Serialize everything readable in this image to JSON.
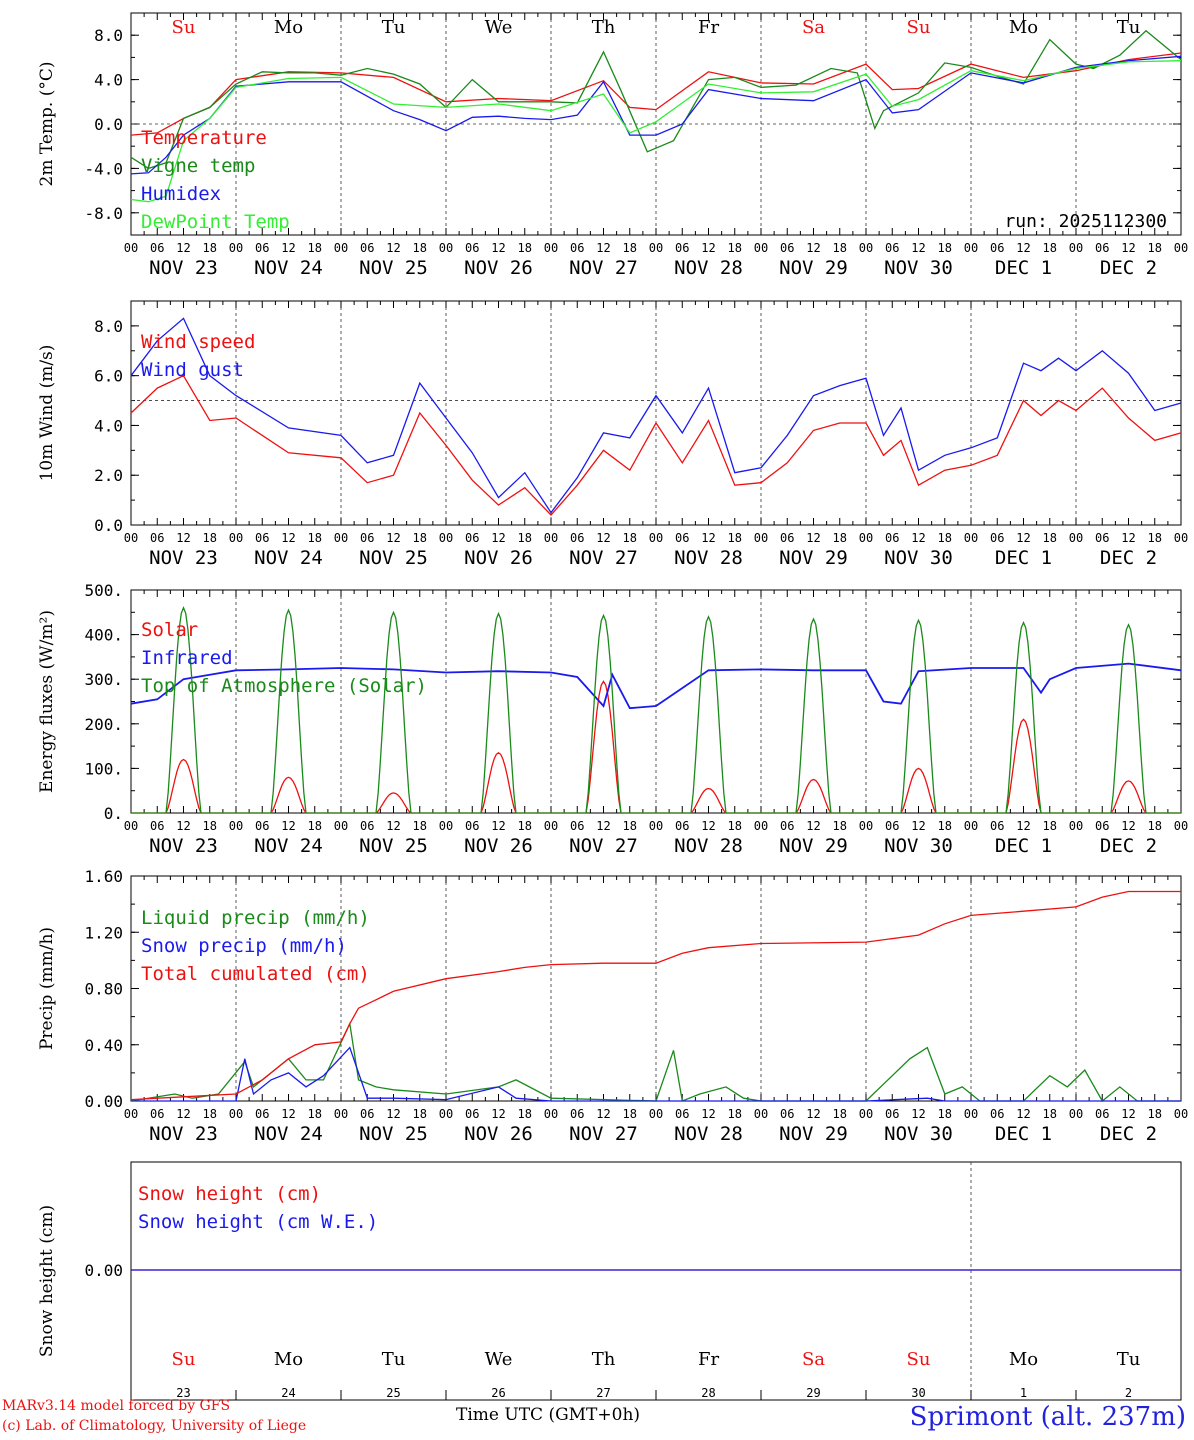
{
  "run_label": "run: 2025112300",
  "footer": {
    "model_line": "MARv3.14 model forced by GFS",
    "credit_line": "(c) Lab. of Climatology, University of Liege",
    "time_label": "Time UTC (GMT+0h)",
    "station": "Sprimont (alt. 237m)"
  },
  "days": [
    {
      "abbr": "Su",
      "date": "NOV 23",
      "num": "23",
      "weekend": true
    },
    {
      "abbr": "Mo",
      "date": "NOV 24",
      "num": "24",
      "weekend": false
    },
    {
      "abbr": "Tu",
      "date": "NOV 25",
      "num": "25",
      "weekend": false
    },
    {
      "abbr": "We",
      "date": "NOV 26",
      "num": "26",
      "weekend": false
    },
    {
      "abbr": "Th",
      "date": "NOV 27",
      "num": "27",
      "weekend": false
    },
    {
      "abbr": "Fr",
      "date": "NOV 28",
      "num": "28",
      "weekend": false
    },
    {
      "abbr": "Sa",
      "date": "NOV 29",
      "num": "29",
      "weekend": true
    },
    {
      "abbr": "Su",
      "date": "NOV 30",
      "num": "30",
      "weekend": true
    },
    {
      "abbr": "Mo",
      "date": "DEC  1",
      "num": "1",
      "weekend": false
    },
    {
      "abbr": "Tu",
      "date": "DEC  2",
      "num": "2",
      "weekend": false
    }
  ],
  "hour_ticks": [
    "00",
    "06",
    "12",
    "18"
  ],
  "colors": {
    "red": "#ee1111",
    "green": "#1a8a1a",
    "blue": "#1a1aee",
    "lightgreen": "#33ee33",
    "black": "#000000"
  },
  "chart_data": [
    {
      "id": "temp",
      "type": "line",
      "ylabel": "2m Temp. (°C)",
      "ylim": [
        -10,
        10
      ],
      "yticks": [
        -8,
        -4,
        0,
        4,
        8
      ],
      "ytick_labels": [
        "-8.0",
        "-4.0",
        "0.0",
        "4.0",
        "8.0"
      ],
      "ref_line": 0,
      "x_unit": "hours since NOV 23 00 UTC",
      "series": [
        {
          "name": "Temperature",
          "color": "red",
          "x": [
            0,
            6,
            12,
            18,
            24,
            36,
            48,
            60,
            72,
            84,
            96,
            108,
            114,
            120,
            132,
            144,
            156,
            168,
            174,
            180,
            192,
            204,
            216,
            228,
            240
          ],
          "y": [
            -1,
            -0.8,
            0.5,
            1.5,
            4,
            4.7,
            4.6,
            4.2,
            2,
            2.3,
            2.1,
            3.9,
            1.5,
            1.3,
            4.7,
            3.7,
            3.6,
            5.4,
            3.1,
            3.2,
            5.4,
            4.2,
            4.8,
            5.8,
            6.4
          ]
        },
        {
          "name": "Vigne temp",
          "color": "green",
          "x": [
            0,
            4,
            8,
            12,
            18,
            24,
            30,
            36,
            42,
            48,
            54,
            60,
            66,
            72,
            78,
            84,
            90,
            96,
            102,
            108,
            112,
            118,
            124,
            132,
            138,
            144,
            152,
            160,
            166,
            170,
            172,
            180,
            186,
            192,
            198,
            204,
            210,
            216,
            220,
            226,
            232,
            240
          ],
          "y": [
            -3,
            -4,
            -3.5,
            0.5,
            1.5,
            3.6,
            4.7,
            4.6,
            4.6,
            4.4,
            5,
            4.5,
            3.6,
            1.5,
            4,
            2,
            2,
            2,
            1.9,
            6.5,
            3,
            -2.5,
            -1.5,
            4,
            4.2,
            3.3,
            3.5,
            5,
            4.6,
            -0.4,
            1.2,
            2.8,
            5.5,
            5.1,
            4.3,
            3.6,
            7.6,
            5.4,
            5,
            6.2,
            8.4,
            5.8
          ]
        },
        {
          "name": "Humidex",
          "color": "blue",
          "x": [
            0,
            4,
            8,
            12,
            18,
            24,
            36,
            48,
            60,
            66,
            72,
            78,
            84,
            90,
            96,
            102,
            108,
            114,
            120,
            126,
            132,
            144,
            156,
            168,
            174,
            180,
            192,
            204,
            216,
            228,
            240
          ],
          "y": [
            -4.5,
            -4.4,
            -3,
            -1,
            0.5,
            3.4,
            3.8,
            3.8,
            1.2,
            0.4,
            -0.6,
            0.6,
            0.7,
            0.5,
            0.4,
            0.8,
            3.8,
            -1,
            -1,
            0,
            3.1,
            2.3,
            2.1,
            4,
            1,
            1.3,
            4.6,
            3.7,
            5.1,
            5.7,
            6.1
          ]
        },
        {
          "name": "DewPoint Temp",
          "color": "lightgreen",
          "x": [
            0,
            4,
            8,
            12,
            18,
            24,
            36,
            48,
            60,
            72,
            84,
            96,
            108,
            114,
            120,
            132,
            144,
            156,
            168,
            174,
            180,
            192,
            204,
            216,
            228,
            240
          ],
          "y": [
            -6.8,
            -7,
            -6.5,
            -1.5,
            0.5,
            3.3,
            4.1,
            4.2,
            1.8,
            1.5,
            1.8,
            1.2,
            2.7,
            -0.8,
            0.2,
            3.6,
            2.8,
            2.9,
            4.5,
            1.6,
            2.2,
            4.8,
            3.9,
            5,
            5.6,
            5.7
          ]
        }
      ]
    },
    {
      "id": "wind",
      "type": "line",
      "ylabel": "10m Wind (m/s)",
      "ylim": [
        0,
        9
      ],
      "yticks": [
        0,
        2,
        4,
        6,
        8
      ],
      "ytick_labels": [
        "0.0",
        "2.0",
        "4.0",
        "6.0",
        "8.0"
      ],
      "ref_line": 5,
      "x_unit": "hours since NOV 23 00 UTC",
      "series": [
        {
          "name": "Wind speed",
          "color": "red",
          "x": [
            0,
            6,
            12,
            18,
            24,
            36,
            48,
            54,
            60,
            66,
            72,
            78,
            84,
            90,
            96,
            102,
            108,
            114,
            120,
            126,
            132,
            138,
            144,
            150,
            156,
            162,
            168,
            172,
            176,
            180,
            186,
            192,
            198,
            204,
            208,
            212,
            216,
            222,
            228,
            234,
            240
          ],
          "y": [
            4.5,
            5.5,
            6,
            4.2,
            4.3,
            2.9,
            2.7,
            1.7,
            2,
            4.5,
            3.2,
            1.8,
            0.8,
            1.5,
            0.4,
            1.6,
            3,
            2.2,
            4.1,
            2.5,
            4.2,
            1.6,
            1.7,
            2.5,
            3.8,
            4.1,
            4.1,
            2.8,
            3.4,
            1.6,
            2.2,
            2.4,
            2.8,
            5,
            4.4,
            5,
            4.6,
            5.5,
            4.3,
            3.4,
            3.7
          ]
        },
        {
          "name": "Wind gust",
          "color": "blue",
          "x": [
            0,
            6,
            12,
            18,
            24,
            36,
            48,
            54,
            60,
            66,
            72,
            78,
            84,
            90,
            96,
            102,
            108,
            114,
            120,
            126,
            132,
            138,
            144,
            150,
            156,
            162,
            168,
            172,
            176,
            180,
            186,
            192,
            198,
            204,
            208,
            212,
            216,
            222,
            228,
            234,
            240
          ],
          "y": [
            6,
            7.4,
            8.3,
            6,
            5.2,
            3.9,
            3.6,
            2.5,
            2.8,
            5.7,
            4.3,
            2.9,
            1.1,
            2.1,
            0.5,
            1.9,
            3.7,
            3.5,
            5.2,
            3.7,
            5.5,
            2.1,
            2.3,
            3.6,
            5.2,
            5.6,
            5.9,
            3.6,
            4.7,
            2.2,
            2.8,
            3.1,
            3.5,
            6.5,
            6.2,
            6.7,
            6.2,
            7,
            6.1,
            4.6,
            4.9
          ]
        }
      ]
    },
    {
      "id": "energy",
      "type": "line",
      "ylabel": "Energy fluxes (W/m²)",
      "ylim": [
        0,
        500
      ],
      "yticks": [
        0,
        100,
        200,
        300,
        400,
        500
      ],
      "ytick_labels": [
        "0.",
        "100.",
        "200.",
        "300.",
        "400.",
        "500."
      ],
      "x_unit": "hours since NOV 23 00 UTC",
      "series": [
        {
          "name": "Solar",
          "color": "red",
          "daily_peak": [
            120,
            80,
            45,
            135,
            295,
            55,
            75,
            100,
            210,
            72
          ],
          "daytime_hours": [
            8,
            16
          ]
        },
        {
          "name": "Infrared",
          "color": "blue",
          "x": [
            0,
            6,
            12,
            18,
            24,
            36,
            48,
            60,
            72,
            84,
            96,
            102,
            108,
            110,
            114,
            120,
            132,
            144,
            156,
            168,
            172,
            176,
            180,
            192,
            204,
            208,
            210,
            216,
            228,
            240
          ],
          "y": [
            245,
            255,
            300,
            310,
            320,
            322,
            325,
            322,
            315,
            318,
            315,
            305,
            240,
            310,
            235,
            240,
            320,
            322,
            320,
            320,
            250,
            245,
            318,
            325,
            325,
            270,
            300,
            325,
            335,
            320
          ]
        },
        {
          "name": "Top of Atmosphere (Solar)",
          "color": "green",
          "daily_peak": [
            460,
            455,
            450,
            447,
            443,
            440,
            435,
            432,
            427,
            422
          ],
          "daytime_hours": [
            8,
            16
          ]
        }
      ]
    },
    {
      "id": "precip",
      "type": "line",
      "ylabel": "Precip (mm/h)",
      "ylim": [
        0,
        1.6
      ],
      "yticks": [
        0,
        0.4,
        0.8,
        1.2,
        1.6
      ],
      "ytick_labels": [
        "0.00",
        "0.40",
        "0.80",
        "1.20",
        "1.60"
      ],
      "x_unit": "hours since NOV 23 00 UTC",
      "series": [
        {
          "name": "Liquid precip (mm/h)",
          "color": "green",
          "x": [
            0,
            10,
            14,
            20,
            26,
            28,
            32,
            36,
            40,
            44,
            50,
            52,
            56,
            60,
            72,
            84,
            88,
            96,
            120,
            124,
            126,
            130,
            136,
            140,
            144,
            168,
            178,
            182,
            186,
            190,
            194,
            198,
            204,
            210,
            214,
            218,
            222,
            226,
            230,
            240
          ],
          "y": [
            0,
            0.05,
            0.02,
            0.05,
            0.28,
            0.1,
            0.2,
            0.3,
            0.15,
            0.15,
            0.55,
            0.15,
            0.1,
            0.08,
            0.05,
            0.1,
            0.15,
            0.02,
            0,
            0.36,
            0,
            0.05,
            0.1,
            0.02,
            0,
            0,
            0.3,
            0.38,
            0.05,
            0.1,
            0,
            0,
            0,
            0.18,
            0.1,
            0.22,
            0,
            0.1,
            0,
            0
          ]
        },
        {
          "name": "Snow precip (mm/h)",
          "color": "blue",
          "x": [
            0,
            24,
            26,
            28,
            32,
            36,
            40,
            44,
            50,
            54,
            60,
            72,
            84,
            88,
            96,
            168,
            182,
            186,
            240
          ],
          "y": [
            0,
            0,
            0.3,
            0.05,
            0.15,
            0.2,
            0.1,
            0.18,
            0.38,
            0.02,
            0.02,
            0.01,
            0.1,
            0.02,
            0,
            0,
            0.02,
            0,
            0
          ]
        },
        {
          "name": "Total cumulated (cm)",
          "color": "red",
          "x": [
            0,
            12,
            24,
            30,
            36,
            42,
            48,
            50,
            52,
            56,
            60,
            72,
            84,
            90,
            96,
            108,
            120,
            126,
            132,
            144,
            168,
            180,
            186,
            192,
            204,
            216,
            222,
            228,
            240
          ],
          "y": [
            0.01,
            0.03,
            0.05,
            0.15,
            0.3,
            0.4,
            0.42,
            0.55,
            0.66,
            0.72,
            0.78,
            0.87,
            0.92,
            0.95,
            0.97,
            0.98,
            0.98,
            1.05,
            1.09,
            1.12,
            1.13,
            1.18,
            1.26,
            1.32,
            1.35,
            1.38,
            1.45,
            1.49,
            1.49
          ]
        }
      ]
    },
    {
      "id": "snow",
      "type": "line",
      "ylabel": "Snow height (cm)",
      "ytick_labels": [
        "0.00"
      ],
      "x_unit": "hours since NOV 23 00 UTC",
      "series": [
        {
          "name": "Snow height (cm)",
          "color": "red",
          "x": [
            0,
            240
          ],
          "y": [
            0,
            0
          ]
        },
        {
          "name": "Snow height (cm W.E.)",
          "color": "blue",
          "x": [
            0,
            240
          ],
          "y": [
            0,
            0
          ]
        }
      ]
    }
  ]
}
